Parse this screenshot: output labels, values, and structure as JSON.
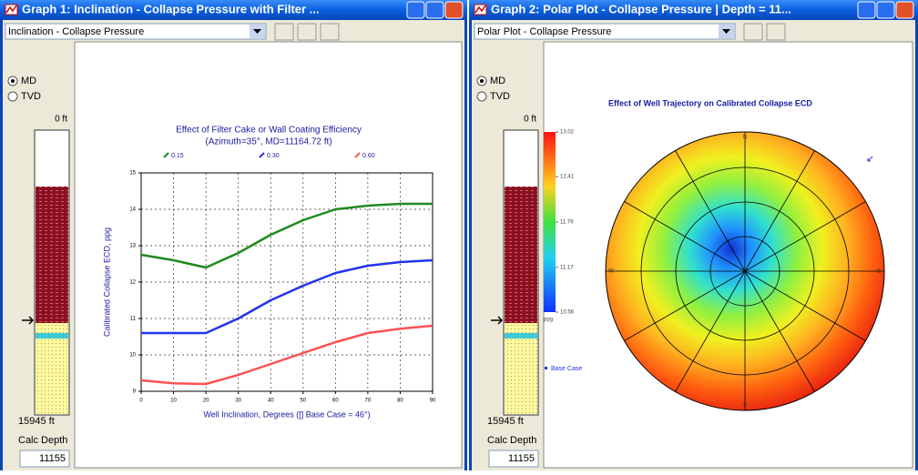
{
  "windows": [
    {
      "title": "Graph 1: Inclination - Collapse Pressure with Filter ...",
      "dropdown": "Inclination - Collapse Pressure",
      "depth_panel": {
        "modes": [
          "MD",
          "TVD"
        ],
        "top": "0 ft",
        "bottom": "15945 ft",
        "calc_label": "Calc Depth",
        "calc_value": "11155"
      }
    },
    {
      "title": "Graph 2: Polar Plot - Collapse Pressure | Depth = 11...",
      "dropdown": "Polar Plot - Collapse Pressure",
      "depth_panel": {
        "modes": [
          "MD",
          "TVD"
        ],
        "top": "0 ft",
        "bottom": "15945 ft",
        "calc_label": "Calc Depth",
        "calc_value": "11155"
      }
    }
  ],
  "chart_data": [
    {
      "type": "line",
      "title": "Effect of Filter Cake or Wall Coating Efficiency",
      "subtitle": "(Azimuth=35°, MD=11164.72 ft)",
      "y_label": "Calibrated Collapse ECD, ppg",
      "x_label": "Well Inclination, Degrees ([] Base Case = 46°)",
      "x": [
        0,
        10,
        20,
        30,
        40,
        50,
        60,
        70,
        80,
        90
      ],
      "series": [
        {
          "name": "0.15",
          "color": "#1e8a1e",
          "values": [
            12.75,
            12.6,
            12.4,
            12.8,
            13.3,
            13.7,
            14.0,
            14.1,
            14.15,
            14.15
          ]
        },
        {
          "name": "0.30",
          "color": "#2233ee",
          "values": [
            10.6,
            10.6,
            10.6,
            11.0,
            11.5,
            11.9,
            12.25,
            12.45,
            12.55,
            12.6
          ]
        },
        {
          "name": "0.60",
          "color": "#ff5050",
          "values": [
            9.3,
            9.22,
            9.2,
            9.45,
            9.75,
            10.05,
            10.35,
            10.6,
            10.72,
            10.8
          ]
        }
      ],
      "xlim": [
        0,
        90
      ],
      "xticks": [
        0,
        10,
        20,
        30,
        40,
        50,
        60,
        70,
        80,
        90
      ],
      "ylim": [
        9,
        15
      ],
      "yticks": [
        9,
        10,
        11,
        12,
        13,
        14,
        15
      ],
      "grid": true
    },
    {
      "type": "polar",
      "title": "Effect of Well Trajectory on Calibrated Collapse ECD",
      "clim": [
        10.56,
        13.02
      ],
      "cticks": [
        10.56,
        11.17,
        11.79,
        12.41,
        13.02
      ],
      "unit": "ppg",
      "directions": [
        "N",
        "E",
        "S",
        "W"
      ],
      "legend": "Base Case"
    }
  ]
}
